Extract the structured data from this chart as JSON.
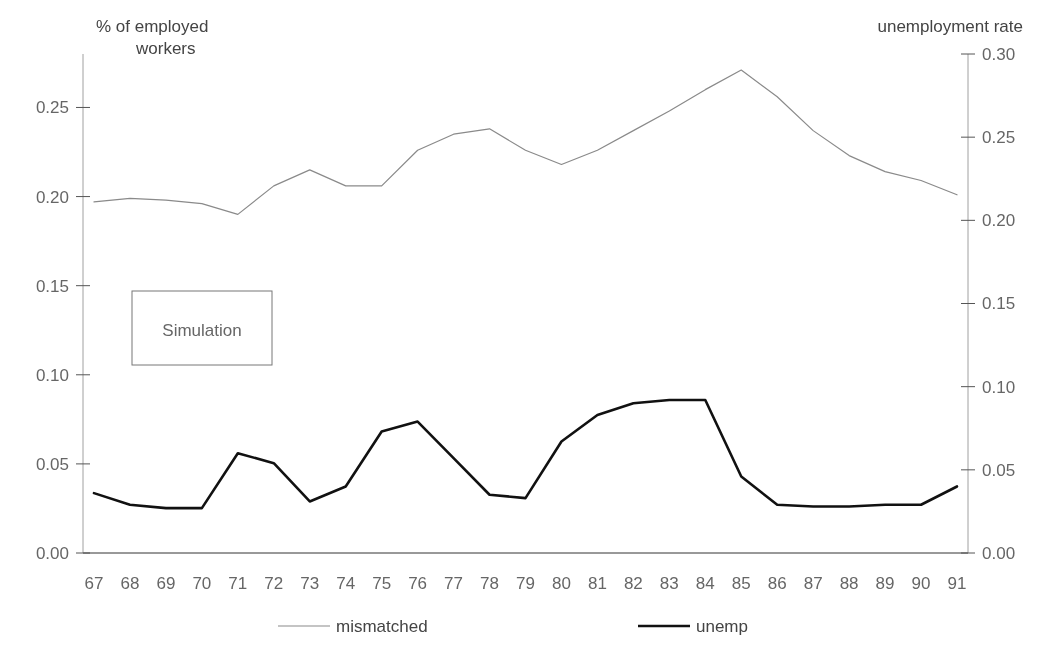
{
  "chart_data": {
    "type": "line",
    "ylabel": "% of employed workers",
    "y2label": "unemployment rate",
    "categories": [
      "67",
      "68",
      "69",
      "70",
      "71",
      "72",
      "73",
      "74",
      "75",
      "76",
      "77",
      "78",
      "79",
      "80",
      "81",
      "82",
      "83",
      "84",
      "85",
      "86",
      "87",
      "88",
      "89",
      "90",
      "91"
    ],
    "series": [
      {
        "name": "mismatched",
        "color": "#8a8a8a",
        "values": [
          0.197,
          0.199,
          0.198,
          0.196,
          0.19,
          0.206,
          0.215,
          0.206,
          0.206,
          0.226,
          0.235,
          0.238,
          0.226,
          0.218,
          0.226,
          0.237,
          0.248,
          0.26,
          0.271,
          0.256,
          0.237,
          0.223,
          0.214,
          0.209,
          0.201
        ]
      },
      {
        "name": "unemp",
        "color": "#111111",
        "axis": "y2",
        "values": [
          0.036,
          0.029,
          0.027,
          0.027,
          0.06,
          0.054,
          0.031,
          0.04,
          0.073,
          0.079,
          0.057,
          0.035,
          0.033,
          0.067,
          0.083,
          0.09,
          0.092,
          0.092,
          0.046,
          0.029,
          0.028,
          0.028,
          0.029,
          0.029,
          0.04
        ]
      }
    ],
    "ylim": [
      0,
      0.28
    ],
    "yticks": [
      {
        "value": 0,
        "label": "0.00"
      },
      {
        "value": 0.05,
        "label": "0.05"
      },
      {
        "value": 0.1,
        "label": "0.10"
      },
      {
        "value": 0.15,
        "label": "0.15"
      },
      {
        "value": 0.2,
        "label": "0.20"
      },
      {
        "value": 0.25,
        "label": "0.25"
      }
    ],
    "y2lim": [
      0,
      0.3
    ],
    "y2ticks": [
      {
        "value": 0,
        "label": "0.00"
      },
      {
        "value": 0.05,
        "label": "0.05"
      },
      {
        "value": 0.1,
        "label": "0.10"
      },
      {
        "value": 0.15,
        "label": "0.15"
      },
      {
        "value": 0.2,
        "label": "0.20"
      },
      {
        "value": 0.25,
        "label": "0.25"
      },
      {
        "value": 0.3,
        "label": "0.30"
      }
    ],
    "annotations": [
      "Simulation"
    ],
    "legend": "bottom",
    "grid": false,
    "marker": "none"
  }
}
